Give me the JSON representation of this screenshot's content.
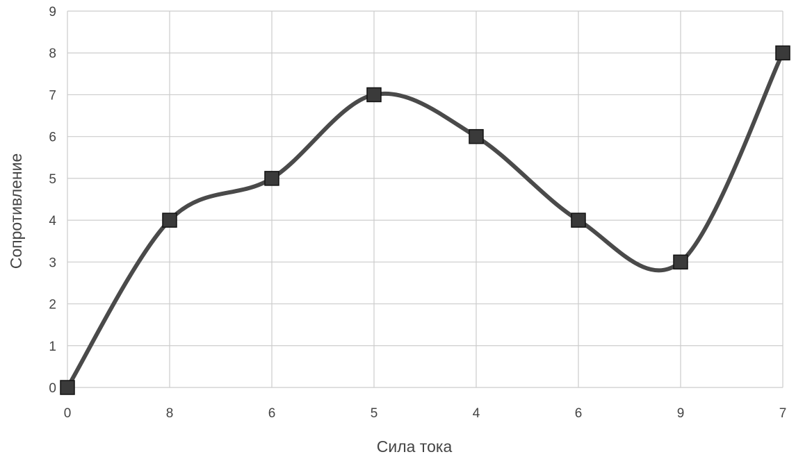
{
  "chart_data": {
    "type": "line",
    "title": "",
    "xlabel": "Сила тока",
    "ylabel": "Сопротивление",
    "categories": [
      "0",
      "8",
      "6",
      "5",
      "4",
      "6",
      "9",
      "7"
    ],
    "series": [
      {
        "values": [
          0,
          4,
          5,
          7,
          6,
          4,
          3,
          8
        ]
      }
    ],
    "ylim": [
      0,
      9
    ],
    "yticks": [
      "0",
      "1",
      "2",
      "3",
      "4",
      "5",
      "6",
      "7",
      "8",
      "9"
    ],
    "grid": true,
    "smooth": true,
    "marker": "square",
    "colors": {
      "line": "#4a4a4a",
      "marker_fill": "#3a3a3a",
      "marker_stroke": "#111111",
      "grid": "#cccccc",
      "text": "#444444"
    }
  }
}
